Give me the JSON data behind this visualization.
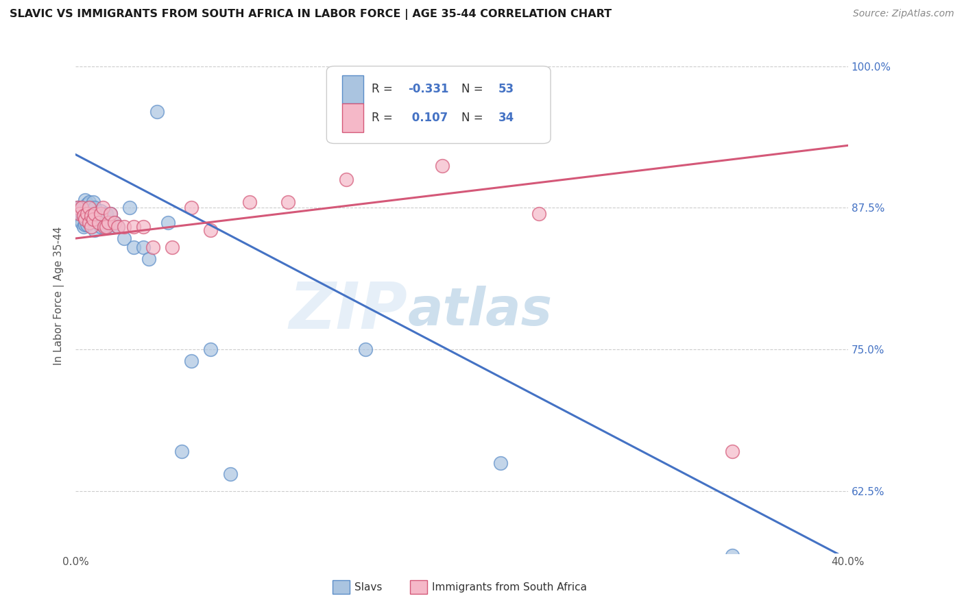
{
  "title": "SLAVIC VS IMMIGRANTS FROM SOUTH AFRICA IN LABOR FORCE | AGE 35-44 CORRELATION CHART",
  "source": "Source: ZipAtlas.com",
  "ylabel": "In Labor Force | Age 35-44",
  "xlim": [
    0.0,
    0.4
  ],
  "ylim": [
    0.57,
    1.025
  ],
  "xtick_positions": [
    0.0,
    0.08,
    0.16,
    0.24,
    0.32,
    0.4
  ],
  "xtick_labels": [
    "0.0%",
    "",
    "",
    "",
    "",
    "40.0%"
  ],
  "ytick_positions": [
    1.0,
    0.875,
    0.75,
    0.625
  ],
  "ytick_labels": [
    "100.0%",
    "87.5%",
    "75.0%",
    "62.5%"
  ],
  "slavs_R": "-0.331",
  "slavs_N": "53",
  "imm_R": "0.107",
  "imm_N": "34",
  "slavs_color": "#aac4e0",
  "slavs_edge_color": "#5b8dc8",
  "imm_color": "#f5b8c8",
  "imm_edge_color": "#d45878",
  "slavs_line_color": "#4472c4",
  "imm_line_color": "#d45878",
  "background_color": "#ffffff",
  "watermark": "ZIPatlas",
  "slavs_line_x": [
    0.0,
    0.4
  ],
  "slavs_line_y": [
    0.922,
    0.565
  ],
  "imm_line_x": [
    0.0,
    0.4
  ],
  "imm_line_y": [
    0.848,
    0.93
  ],
  "slavs_x": [
    0.001,
    0.001,
    0.002,
    0.002,
    0.003,
    0.003,
    0.003,
    0.004,
    0.004,
    0.004,
    0.005,
    0.005,
    0.005,
    0.006,
    0.006,
    0.006,
    0.007,
    0.007,
    0.007,
    0.007,
    0.008,
    0.008,
    0.009,
    0.009,
    0.01,
    0.01,
    0.01,
    0.011,
    0.012,
    0.013,
    0.013,
    0.014,
    0.015,
    0.016,
    0.017,
    0.018,
    0.019,
    0.02,
    0.022,
    0.025,
    0.028,
    0.03,
    0.035,
    0.038,
    0.042,
    0.048,
    0.055,
    0.06,
    0.07,
    0.08,
    0.15,
    0.22,
    0.34
  ],
  "slavs_y": [
    0.875,
    0.87,
    0.875,
    0.865,
    0.875,
    0.87,
    0.862,
    0.875,
    0.868,
    0.858,
    0.882,
    0.87,
    0.86,
    0.878,
    0.87,
    0.86,
    0.88,
    0.875,
    0.87,
    0.862,
    0.875,
    0.865,
    0.88,
    0.868,
    0.875,
    0.865,
    0.855,
    0.87,
    0.865,
    0.872,
    0.858,
    0.86,
    0.86,
    0.87,
    0.86,
    0.87,
    0.858,
    0.862,
    0.858,
    0.848,
    0.875,
    0.84,
    0.84,
    0.83,
    0.96,
    0.862,
    0.66,
    0.74,
    0.75,
    0.64,
    0.75,
    0.65,
    0.568
  ],
  "imm_x": [
    0.001,
    0.002,
    0.003,
    0.004,
    0.005,
    0.006,
    0.007,
    0.007,
    0.008,
    0.008,
    0.009,
    0.01,
    0.012,
    0.013,
    0.014,
    0.015,
    0.016,
    0.017,
    0.018,
    0.02,
    0.022,
    0.025,
    0.03,
    0.035,
    0.04,
    0.05,
    0.06,
    0.07,
    0.09,
    0.11,
    0.14,
    0.19,
    0.24,
    0.34
  ],
  "imm_y": [
    0.875,
    0.87,
    0.875,
    0.868,
    0.865,
    0.87,
    0.875,
    0.862,
    0.868,
    0.858,
    0.865,
    0.87,
    0.862,
    0.87,
    0.875,
    0.858,
    0.858,
    0.862,
    0.87,
    0.862,
    0.858,
    0.858,
    0.858,
    0.858,
    0.84,
    0.84,
    0.875,
    0.855,
    0.88,
    0.88,
    0.9,
    0.912,
    0.87,
    0.66
  ]
}
